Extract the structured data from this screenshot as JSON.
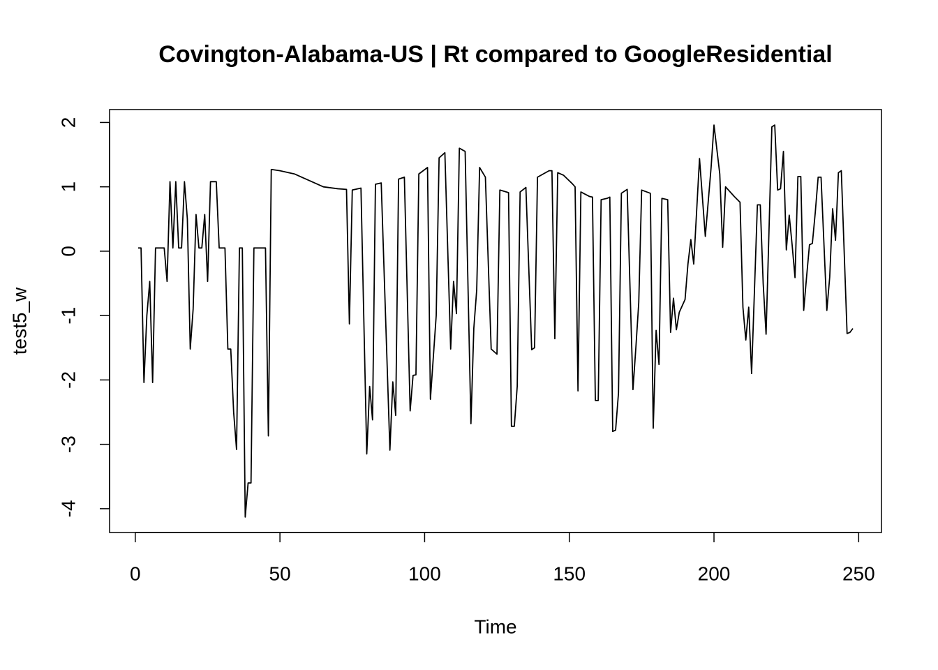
{
  "chart_data": {
    "type": "line",
    "title": "Covington-Alabama-US | Rt compared to GoogleResidential",
    "x_label": "Time",
    "y_label": "test5_w",
    "color": "#000000",
    "x": [
      1,
      2,
      3,
      4,
      5,
      6,
      7,
      10,
      11,
      12,
      13,
      14,
      15,
      16,
      17,
      18,
      19,
      20,
      21,
      22,
      23,
      24,
      25,
      26,
      28,
      29,
      31,
      32,
      33,
      34,
      35,
      36,
      37,
      38,
      39,
      40,
      41,
      45,
      46,
      47,
      50,
      55,
      60,
      65,
      70,
      73,
      74,
      75,
      78,
      80,
      81,
      82,
      83,
      85,
      88,
      89,
      90,
      91,
      93,
      95,
      96,
      97,
      98,
      101,
      102,
      104,
      105,
      107,
      109,
      110,
      111,
      112,
      114,
      116,
      117,
      118,
      119,
      121,
      123,
      125,
      126,
      129,
      130,
      131,
      132,
      133,
      135,
      137,
      138,
      139,
      143,
      144,
      145,
      146,
      148,
      151,
      152,
      153,
      154,
      157,
      158,
      159,
      160,
      161,
      163,
      164,
      165,
      166,
      167,
      168,
      170,
      172,
      173,
      174,
      175,
      178,
      179,
      180,
      181,
      182,
      184,
      185,
      186,
      187,
      188,
      190,
      191,
      192,
      193,
      195,
      197,
      199,
      200,
      202,
      203,
      204,
      207,
      209,
      210,
      211,
      212,
      213,
      215,
      216,
      217,
      218,
      219,
      220,
      221,
      222,
      223,
      224,
      225,
      226,
      227,
      228,
      229,
      230,
      231,
      232,
      233,
      234,
      235,
      236,
      237,
      239,
      240,
      241,
      242,
      243,
      244,
      246,
      247,
      248
    ],
    "values": [
      0.05,
      0.05,
      -2.04,
      -1.0,
      -0.47,
      -2.04,
      0.05,
      0.05,
      -0.47,
      1.08,
      0.05,
      1.08,
      0.05,
      0.05,
      1.08,
      0.5,
      -1.52,
      -0.9,
      0.57,
      0.05,
      0.05,
      0.57,
      -0.47,
      1.08,
      1.08,
      0.05,
      0.05,
      -1.52,
      -1.52,
      -2.5,
      -3.08,
      0.05,
      0.05,
      -4.13,
      -3.6,
      -3.6,
      0.05,
      0.05,
      -2.87,
      1.27,
      1.25,
      1.2,
      1.1,
      1.0,
      0.97,
      0.96,
      -1.13,
      0.95,
      0.98,
      -3.15,
      -2.1,
      -2.62,
      1.04,
      1.06,
      -3.09,
      -2.03,
      -2.55,
      1.12,
      1.15,
      -2.48,
      -1.93,
      -1.92,
      1.2,
      1.3,
      -2.3,
      -1.0,
      1.45,
      1.53,
      -1.52,
      -0.47,
      -0.97,
      1.6,
      1.55,
      -2.68,
      -1.2,
      -0.6,
      1.3,
      1.15,
      -1.52,
      -1.6,
      0.95,
      0.91,
      -2.72,
      -2.72,
      -2.1,
      0.92,
      0.99,
      -1.53,
      -1.5,
      1.15,
      1.25,
      1.25,
      -1.36,
      1.22,
      1.18,
      1.05,
      1.0,
      -2.17,
      0.92,
      0.85,
      0.84,
      -2.32,
      -2.32,
      0.8,
      0.82,
      0.84,
      -2.8,
      -2.78,
      -2.2,
      0.9,
      0.96,
      -2.15,
      -1.5,
      -0.8,
      0.95,
      0.9,
      -2.75,
      -1.23,
      -1.76,
      0.82,
      0.8,
      -1.26,
      -0.73,
      -1.22,
      -0.95,
      -0.75,
      -0.2,
      0.18,
      -0.2,
      1.44,
      0.23,
      1.3,
      1.96,
      1.2,
      0.06,
      1.0,
      0.85,
      0.76,
      -0.87,
      -1.38,
      -0.87,
      -1.9,
      0.72,
      0.72,
      -0.5,
      -1.29,
      0.3,
      1.93,
      1.96,
      0.95,
      0.97,
      1.55,
      0.02,
      0.56,
      0.1,
      -0.41,
      1.16,
      1.16,
      -0.92,
      -0.4,
      0.1,
      0.12,
      0.6,
      1.15,
      1.15,
      -0.92,
      -0.4,
      0.66,
      0.17,
      1.22,
      1.25,
      -1.28,
      -1.26,
      -1.2
    ],
    "xlim": [
      -8.88,
      257.88
    ],
    "ylim": [
      -4.37,
      2.2
    ],
    "xticks": [
      0,
      50,
      100,
      150,
      200,
      250
    ],
    "yticks": [
      -4,
      -3,
      -2,
      -1,
      0,
      1,
      2
    ]
  }
}
